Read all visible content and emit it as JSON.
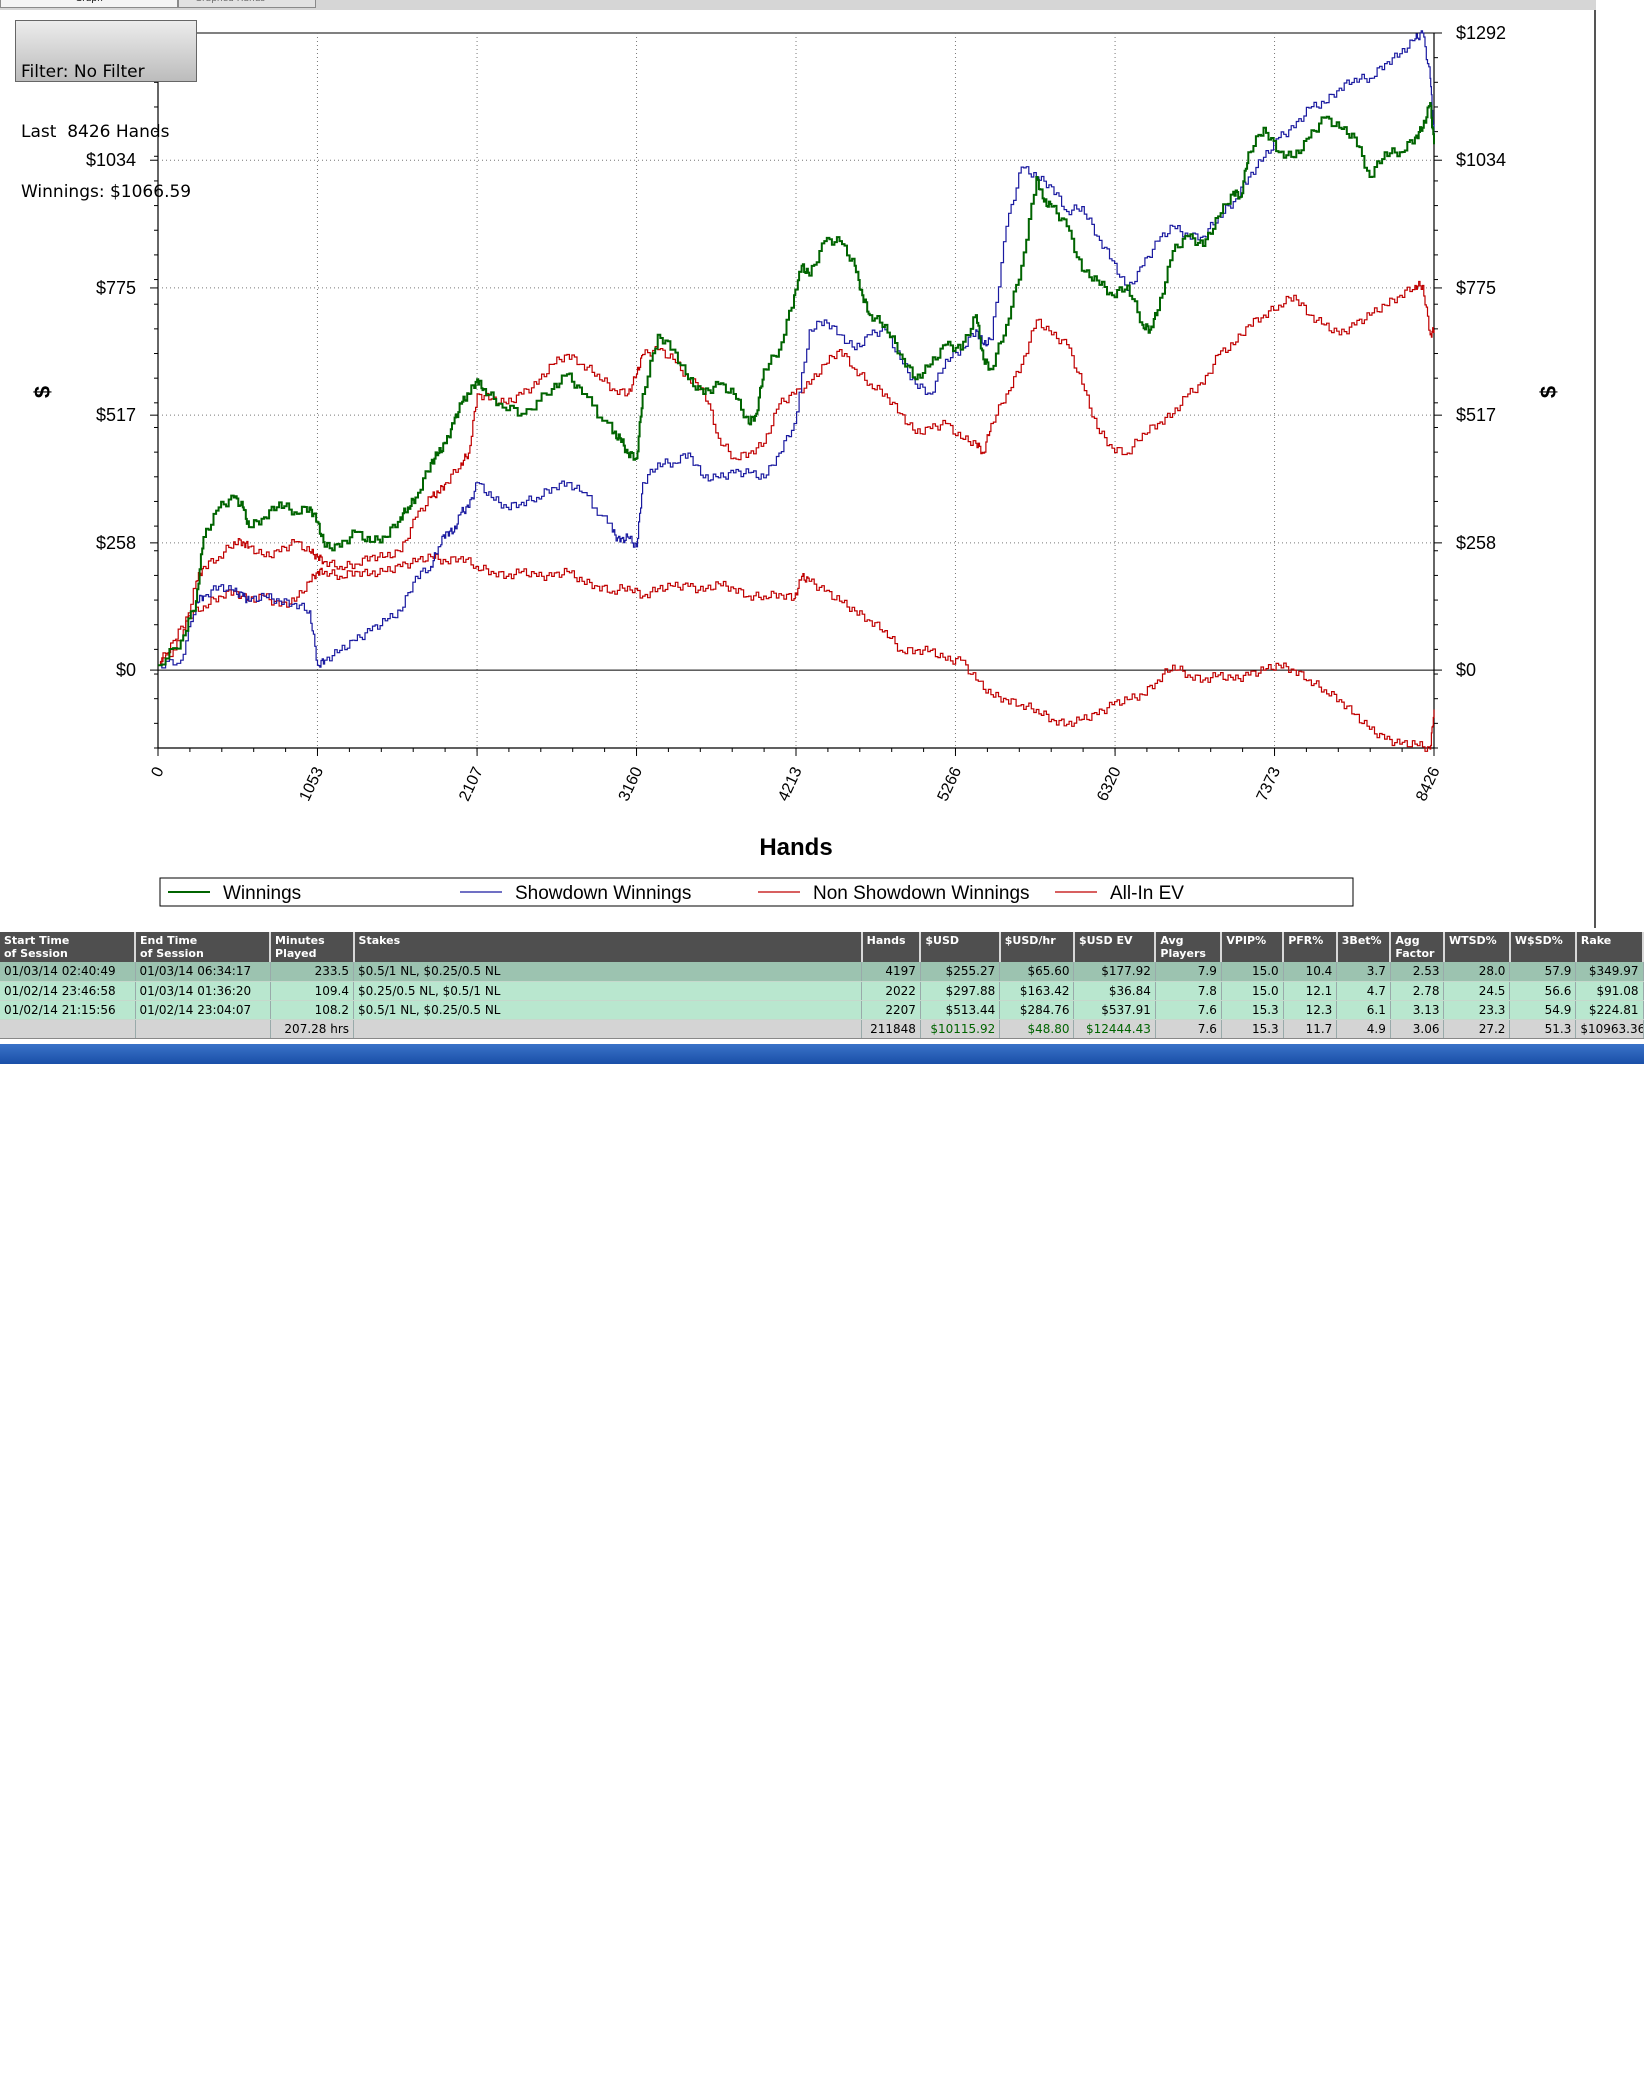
{
  "tabs": [
    {
      "label": "Graph",
      "active": true
    },
    {
      "label": "Graphed Hands",
      "active": false
    }
  ],
  "filter_box": {
    "line1": "Filter: No Filter",
    "line2": "Last  8426 Hands",
    "line3": "Winnings: $1066.59"
  },
  "chart_data": {
    "type": "line",
    "xlabel": "Hands",
    "ylabel": "$",
    "x_ticks": [
      "0",
      "1053",
      "2107",
      "3160",
      "4213",
      "5266",
      "6320",
      "7373",
      "8426"
    ],
    "y_ticks": [
      "$0",
      "$258",
      "$517",
      "$775",
      "$1034",
      "$1292"
    ],
    "xlim": [
      0,
      8426
    ],
    "ylim": [
      -158,
      1292
    ],
    "grid": true,
    "legend_placement": "bottom",
    "series": [
      {
        "name": "Winnings",
        "color": "#006400",
        "x": [
          0,
          150,
          250,
          300,
          400,
          500,
          560,
          600,
          700,
          800,
          900,
          1000,
          1053,
          1100,
          1200,
          1300,
          1400,
          1500,
          1600,
          1650,
          1700,
          1800,
          1850,
          1900,
          1950,
          2000,
          2050,
          2107,
          2150,
          2250,
          2400,
          2600,
          2700,
          2800,
          3000,
          3050,
          3100,
          3160,
          3200,
          3300,
          3400,
          3500,
          3600,
          3700,
          3800,
          3900,
          3950,
          4000,
          4100,
          4200,
          4250,
          4300,
          4400,
          4500,
          4600,
          4650,
          4700,
          4800,
          4900,
          5000,
          5100,
          5200,
          5300,
          5400,
          5450,
          5500,
          5600,
          5700,
          5800,
          5850,
          5900,
          6000,
          6100,
          6200,
          6300,
          6400,
          6500,
          6550,
          6600,
          6700,
          6800,
          6900,
          7000,
          7100,
          7150,
          7200,
          7300,
          7400,
          7500,
          7600,
          7700,
          7800,
          7900,
          8000,
          8100,
          8200,
          8300,
          8350,
          8400,
          8426
        ],
        "y": [
          10,
          60,
          140,
          270,
          330,
          350,
          330,
          290,
          310,
          340,
          320,
          330,
          300,
          250,
          250,
          280,
          260,
          270,
          310,
          330,
          350,
          420,
          440,
          460,
          500,
          540,
          560,
          590,
          570,
          540,
          520,
          570,
          600,
          560,
          480,
          470,
          440,
          430,
          560,
          680,
          650,
          590,
          560,
          580,
          560,
          500,
          520,
          610,
          650,
          760,
          820,
          800,
          870,
          870,
          820,
          760,
          720,
          700,
          640,
          590,
          620,
          660,
          650,
          720,
          630,
          610,
          700,
          820,
          1000,
          950,
          940,
          900,
          810,
          790,
          760,
          780,
          700,
          690,
          730,
          850,
          880,
          860,
          920,
          970,
          960,
          1050,
          1100,
          1050,
          1040,
          1080,
          1120,
          1100,
          1080,
          1000,
          1050,
          1050,
          1080,
          1100,
          1150,
          1066.59
        ]
      },
      {
        "name": "Showdown Winnings",
        "color": "#1a1aa0",
        "x": [
          0,
          150,
          250,
          300,
          400,
          500,
          560,
          600,
          700,
          800,
          900,
          1000,
          1053,
          1100,
          1200,
          1300,
          1400,
          1500,
          1600,
          1700,
          1800,
          1850,
          1900,
          1950,
          2000,
          2050,
          2107,
          2200,
          2300,
          2400,
          2500,
          2600,
          2700,
          2800,
          3000,
          3050,
          3100,
          3160,
          3200,
          3300,
          3400,
          3500,
          3600,
          3700,
          3800,
          3900,
          4000,
          4100,
          4200,
          4300,
          4400,
          4500,
          4600,
          4700,
          4800,
          4900,
          5000,
          5100,
          5200,
          5300,
          5400,
          5450,
          5500,
          5600,
          5700,
          5800,
          5900,
          6000,
          6100,
          6200,
          6300,
          6400,
          6500,
          6600,
          6700,
          6800,
          6900,
          7000,
          7100,
          7200,
          7300,
          7400,
          7500,
          7600,
          7700,
          7800,
          7900,
          8000,
          8100,
          8200,
          8300,
          8350,
          8400,
          8426
        ],
        "y": [
          10,
          20,
          140,
          150,
          170,
          160,
          150,
          140,
          150,
          140,
          135,
          120,
          10,
          20,
          40,
          60,
          80,
          100,
          120,
          190,
          210,
          250,
          280,
          280,
          320,
          330,
          380,
          350,
          330,
          340,
          350,
          370,
          380,
          360,
          280,
          260,
          270,
          250,
          380,
          420,
          420,
          440,
          390,
          390,
          400,
          400,
          390,
          440,
          500,
          690,
          710,
          680,
          650,
          680,
          690,
          630,
          580,
          560,
          630,
          650,
          690,
          660,
          670,
          900,
          1020,
          1000,
          980,
          930,
          940,
          880,
          830,
          770,
          820,
          870,
          900,
          880,
          880,
          920,
          950,
          1000,
          1040,
          1080,
          1100,
          1140,
          1150,
          1180,
          1200,
          1200,
          1230,
          1250,
          1280,
          1292,
          1200,
          1080
        ]
      },
      {
        "name": "Non Showdown Winnings",
        "color": "#c00000",
        "x": [
          0,
          100,
          200,
          300,
          400,
          500,
          600,
          700,
          800,
          900,
          1000,
          1053,
          1100,
          1200,
          1300,
          1400,
          1500,
          1600,
          1700,
          1800,
          1900,
          2000,
          2100,
          2200,
          2300,
          2400,
          2500,
          2600,
          2700,
          2800,
          2900,
          3000,
          3100,
          3200,
          3300,
          3400,
          3500,
          3600,
          3700,
          3800,
          3900,
          4000,
          4100,
          4200,
          4250,
          4300,
          4400,
          4500,
          4600,
          4700,
          4800,
          4900,
          5000,
          5100,
          5200,
          5300,
          5400,
          5500,
          5600,
          5700,
          5800,
          5900,
          6000,
          6100,
          6200,
          6300,
          6400,
          6500,
          6600,
          6700,
          6800,
          6900,
          7000,
          7100,
          7200,
          7300,
          7400,
          7500,
          7600,
          7700,
          7800,
          7900,
          8000,
          8100,
          8200,
          8300,
          8400,
          8426
        ],
        "y": [
          10,
          60,
          110,
          130,
          150,
          160,
          140,
          150,
          130,
          140,
          180,
          200,
          200,
          190,
          200,
          195,
          200,
          210,
          220,
          230,
          220,
          230,
          210,
          200,
          190,
          200,
          190,
          190,
          200,
          180,
          170,
          160,
          170,
          150,
          165,
          170,
          170,
          160,
          175,
          165,
          150,
          150,
          155,
          145,
          190,
          180,
          160,
          140,
          120,
          100,
          80,
          40,
          40,
          40,
          20,
          20,
          -20,
          -50,
          -60,
          -70,
          -80,
          -100,
          -110,
          -100,
          -90,
          -70,
          -60,
          -50,
          -20,
          10,
          -10,
          -20,
          -10,
          -20,
          -10,
          0,
          10,
          0,
          -20,
          -40,
          -60,
          -90,
          -120,
          -140,
          -150,
          -150,
          -160,
          -80
        ]
      },
      {
        "name": "All-In EV",
        "color": "#c00000",
        "x": [
          0,
          150,
          250,
          300,
          400,
          500,
          560,
          600,
          700,
          800,
          900,
          1000,
          1053,
          1100,
          1200,
          1300,
          1400,
          1500,
          1600,
          1700,
          1800,
          1850,
          1900,
          2000,
          2050,
          2107,
          2200,
          2300,
          2400,
          2500,
          2600,
          2700,
          2800,
          2900,
          3000,
          3100,
          3160,
          3200,
          3300,
          3400,
          3500,
          3600,
          3700,
          3800,
          3900,
          4000,
          4100,
          4200,
          4300,
          4400,
          4500,
          4600,
          4700,
          4800,
          4900,
          5000,
          5100,
          5200,
          5300,
          5400,
          5450,
          5500,
          5600,
          5700,
          5800,
          5900,
          6000,
          6100,
          6200,
          6300,
          6400,
          6500,
          6600,
          6700,
          6800,
          6900,
          7000,
          7100,
          7200,
          7300,
          7400,
          7500,
          7600,
          7700,
          7800,
          7900,
          8000,
          8100,
          8200,
          8300,
          8350,
          8400,
          8426
        ],
        "y": [
          10,
          60,
          180,
          210,
          230,
          260,
          260,
          250,
          230,
          240,
          260,
          240,
          230,
          220,
          210,
          215,
          230,
          230,
          240,
          310,
          350,
          360,
          380,
          420,
          440,
          560,
          550,
          540,
          560,
          580,
          620,
          640,
          620,
          600,
          570,
          560,
          600,
          640,
          650,
          630,
          590,
          570,
          470,
          430,
          440,
          460,
          540,
          560,
          580,
          620,
          650,
          610,
          580,
          560,
          520,
          480,
          490,
          500,
          470,
          460,
          440,
          500,
          560,
          620,
          710,
          680,
          660,
          580,
          490,
          450,
          440,
          480,
          500,
          520,
          560,
          580,
          640,
          660,
          700,
          720,
          740,
          760,
          720,
          700,
          680,
          700,
          720,
          740,
          760,
          780,
          780,
          680,
          690
        ]
      }
    ]
  },
  "table": {
    "columns": [
      "Start Time\nof Session",
      "End Time\nof Session",
      "Minutes\nPlayed",
      "Stakes",
      "Hands",
      "$USD",
      "$USD/hr",
      "$USD EV",
      "Avg\nPlayers",
      "VPIP%",
      "PFR%",
      "3Bet%",
      "Agg\nFactor",
      "WTSD%",
      "W$SD%",
      "Rake"
    ],
    "rows": [
      [
        "01/03/14 02:40:49",
        "01/03/14 06:34:17",
        "233.5",
        "$0.5/1 NL, $0.25/0.5 NL",
        "4197",
        "$255.27",
        "$65.60",
        "$177.92",
        "7.9",
        "15.0",
        "10.4",
        "3.7",
        "2.53",
        "28.0",
        "57.9",
        "$349.97"
      ],
      [
        "01/02/14 23:46:58",
        "01/03/14 01:36:20",
        "109.4",
        "$0.25/0.5 NL, $0.5/1 NL",
        "2022",
        "$297.88",
        "$163.42",
        "$36.84",
        "7.8",
        "15.0",
        "12.1",
        "4.7",
        "2.78",
        "24.5",
        "56.6",
        "$91.08"
      ],
      [
        "01/02/14 21:15:56",
        "01/02/14 23:04:07",
        "108.2",
        "$0.5/1 NL, $0.25/0.5 NL",
        "2207",
        "$513.44",
        "$284.76",
        "$537.91",
        "7.6",
        "15.3",
        "12.3",
        "6.1",
        "3.13",
        "23.3",
        "54.9",
        "$224.81"
      ]
    ],
    "totals": [
      "",
      "",
      "207.28 hrs",
      "",
      "211848",
      "$10115.92",
      "$48.80",
      "$12444.43",
      "7.6",
      "15.3",
      "11.7",
      "4.9",
      "3.06",
      "27.2",
      "51.3",
      "$10963.36"
    ]
  }
}
